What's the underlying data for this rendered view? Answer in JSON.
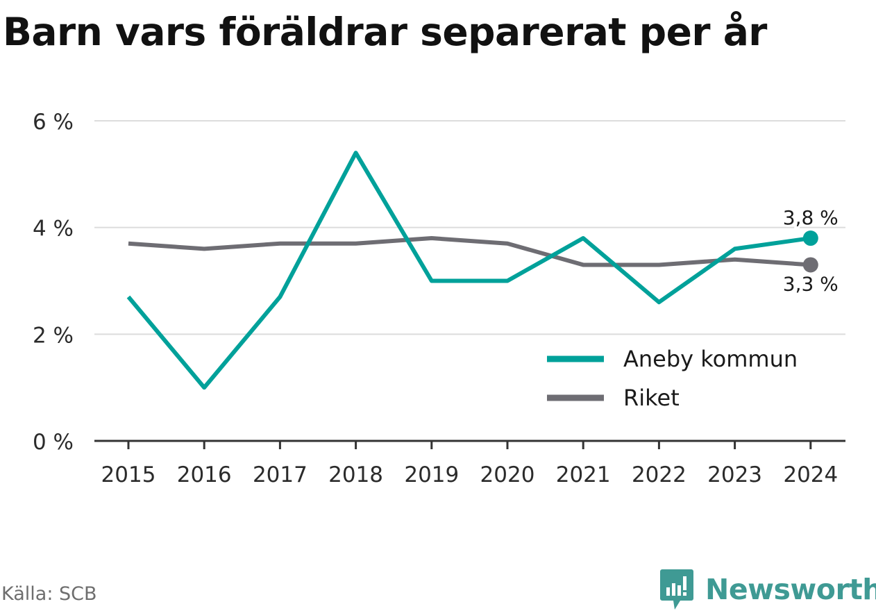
{
  "title": "Barn vars föräldrar separerat per år",
  "source": "Källa: SCB",
  "brand": {
    "name": "Newsworthy",
    "icon": "newsworthy-logo-icon",
    "color": "#3f9a94"
  },
  "chart_data": {
    "type": "line",
    "title": "Barn vars föräldrar separerat per år",
    "xlabel": "",
    "ylabel": "",
    "categories": [
      "2015",
      "2016",
      "2017",
      "2018",
      "2019",
      "2020",
      "2021",
      "2022",
      "2023",
      "2024"
    ],
    "ylim": [
      0,
      6
    ],
    "yticks": [
      0,
      2,
      4,
      6
    ],
    "ytick_labels": [
      "0 %",
      "2 %",
      "4 %",
      "6 %"
    ],
    "grid": true,
    "legend_position": "bottom-right",
    "series": [
      {
        "name": "Aneby kommun",
        "color": "#00a19a",
        "values": [
          2.7,
          1.0,
          2.7,
          5.4,
          3.0,
          3.0,
          3.8,
          2.6,
          3.6,
          3.8
        ],
        "end_label": "3,8 %"
      },
      {
        "name": "Riket",
        "color": "#6e6d73",
        "values": [
          3.7,
          3.6,
          3.7,
          3.7,
          3.8,
          3.7,
          3.3,
          3.3,
          3.4,
          3.3
        ],
        "end_label": "3,3 %"
      }
    ]
  }
}
